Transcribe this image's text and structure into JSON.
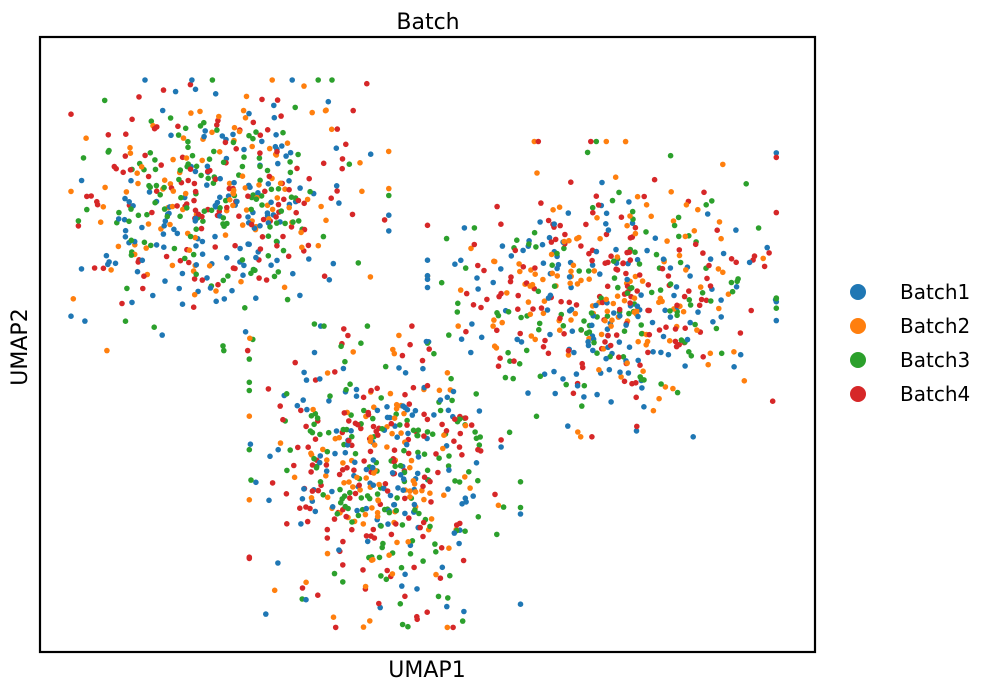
{
  "chart_data": {
    "type": "scatter",
    "title": "Batch",
    "xlabel": "UMAP1",
    "ylabel": "UMAP2",
    "xlim": [
      0,
      10
    ],
    "ylim": [
      0,
      10
    ],
    "grid": false,
    "ticks": false,
    "legend_placement": "right-outside",
    "series": [
      {
        "name": "Batch1",
        "color": "#1f77b4"
      },
      {
        "name": "Batch2",
        "color": "#ff7f0e"
      },
      {
        "name": "Batch3",
        "color": "#2ca02c"
      },
      {
        "name": "Batch4",
        "color": "#d62728"
      }
    ],
    "clusters": [
      {
        "name": "",
        "x_range": [
          0.4,
          4.5
        ],
        "y_range": [
          4.9,
          9.3
        ]
      },
      {
        "name": "",
        "x_range": [
          5.0,
          9.5
        ],
        "y_range": [
          3.5,
          8.3
        ]
      },
      {
        "name": "",
        "x_range": [
          2.7,
          6.2
        ],
        "y_range": [
          0.4,
          5.3
        ]
      }
    ]
  }
}
